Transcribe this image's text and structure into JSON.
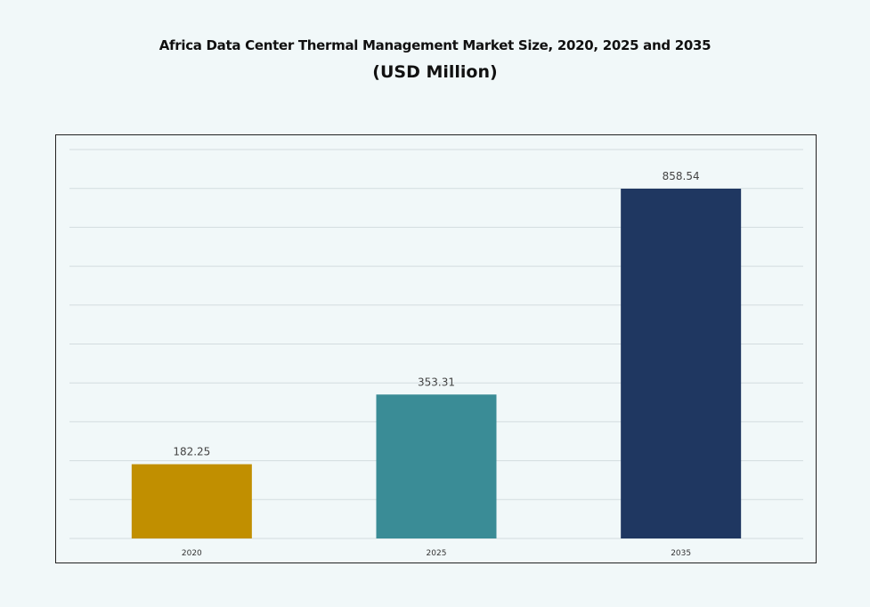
{
  "chart_data": {
    "type": "bar",
    "title": "Africa Data Center Thermal Management Market Size, 2020, 2025 and 2035",
    "subtitle": "(USD Million)",
    "categories": [
      "2020",
      "2025",
      "2035"
    ],
    "values": [
      182.25,
      353.31,
      858.54
    ],
    "data_labels": [
      "182.25",
      "353.31",
      "858.54"
    ],
    "colors": [
      "#c18f00",
      "#3a8c96",
      "#1f3761"
    ],
    "grid": true,
    "legend": "none",
    "xlabel": "",
    "ylabel": ""
  }
}
